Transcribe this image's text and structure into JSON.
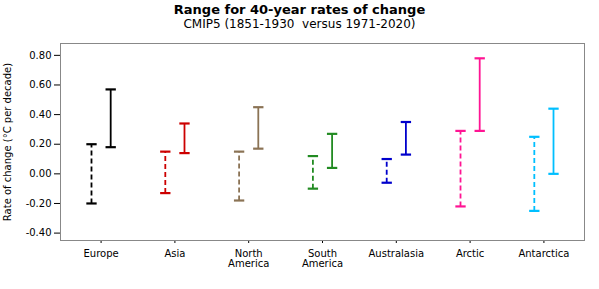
{
  "chart_data": {
    "type": "range",
    "title": "Range for 40-year rates of change",
    "subtitle": "CMIP5 (1851-1930  versus 1971-2020)",
    "ylabel": "Rate of change (°C per decade)",
    "categories": [
      "Europe",
      "Asia",
      "North\nAmerica",
      "South\nAmerica",
      "Australasia",
      "Arctic",
      "Antarctica"
    ],
    "colors": [
      "#000000",
      "#cc0000",
      "#8b7355",
      "#228B22",
      "#0000cc",
      "#ff1493",
      "#00bfff"
    ],
    "ylim": [
      -0.45,
      0.88
    ],
    "yticks": [
      {
        "value": -0.4,
        "label": "-0.40"
      },
      {
        "value": -0.2,
        "label": "-0.20"
      },
      {
        "value": 0.0,
        "label": "0.00"
      },
      {
        "value": 0.2,
        "label": "0.20"
      },
      {
        "value": 0.4,
        "label": "0.40"
      },
      {
        "value": 0.6,
        "label": "0.60"
      },
      {
        "value": 0.8,
        "label": "0.80"
      }
    ],
    "grid": false,
    "series": [
      {
        "line_style": "dashed",
        "low": [
          -0.2,
          -0.13,
          -0.18,
          -0.1,
          -0.06,
          -0.22,
          -0.25
        ],
        "high": [
          0.2,
          0.15,
          0.15,
          0.12,
          0.1,
          0.29,
          0.25
        ]
      },
      {
        "line_style": "solid",
        "low": [
          0.18,
          0.14,
          0.17,
          0.04,
          0.13,
          0.29,
          0.0
        ],
        "high": [
          0.57,
          0.34,
          0.45,
          0.27,
          0.35,
          0.78,
          0.44
        ]
      }
    ]
  }
}
